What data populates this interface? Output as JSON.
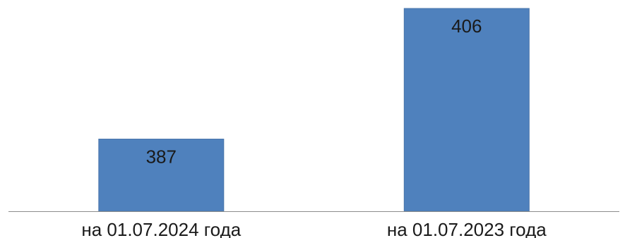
{
  "chart_data": {
    "type": "bar",
    "categories": [
      "на 01.07.2024 года",
      "на 01.07.2023 года"
    ],
    "values": [
      387,
      406
    ],
    "data_labels": [
      "387",
      "406"
    ],
    "title": "",
    "xlabel": "",
    "ylabel": "",
    "ylim": [
      376.5,
      406
    ],
    "grid": false,
    "legend": "none",
    "colors": {
      "bar": "#4f81bd",
      "bar_border": "#4a76ab",
      "axis": "#8c8c8c",
      "text": "#1a1a1a"
    }
  }
}
